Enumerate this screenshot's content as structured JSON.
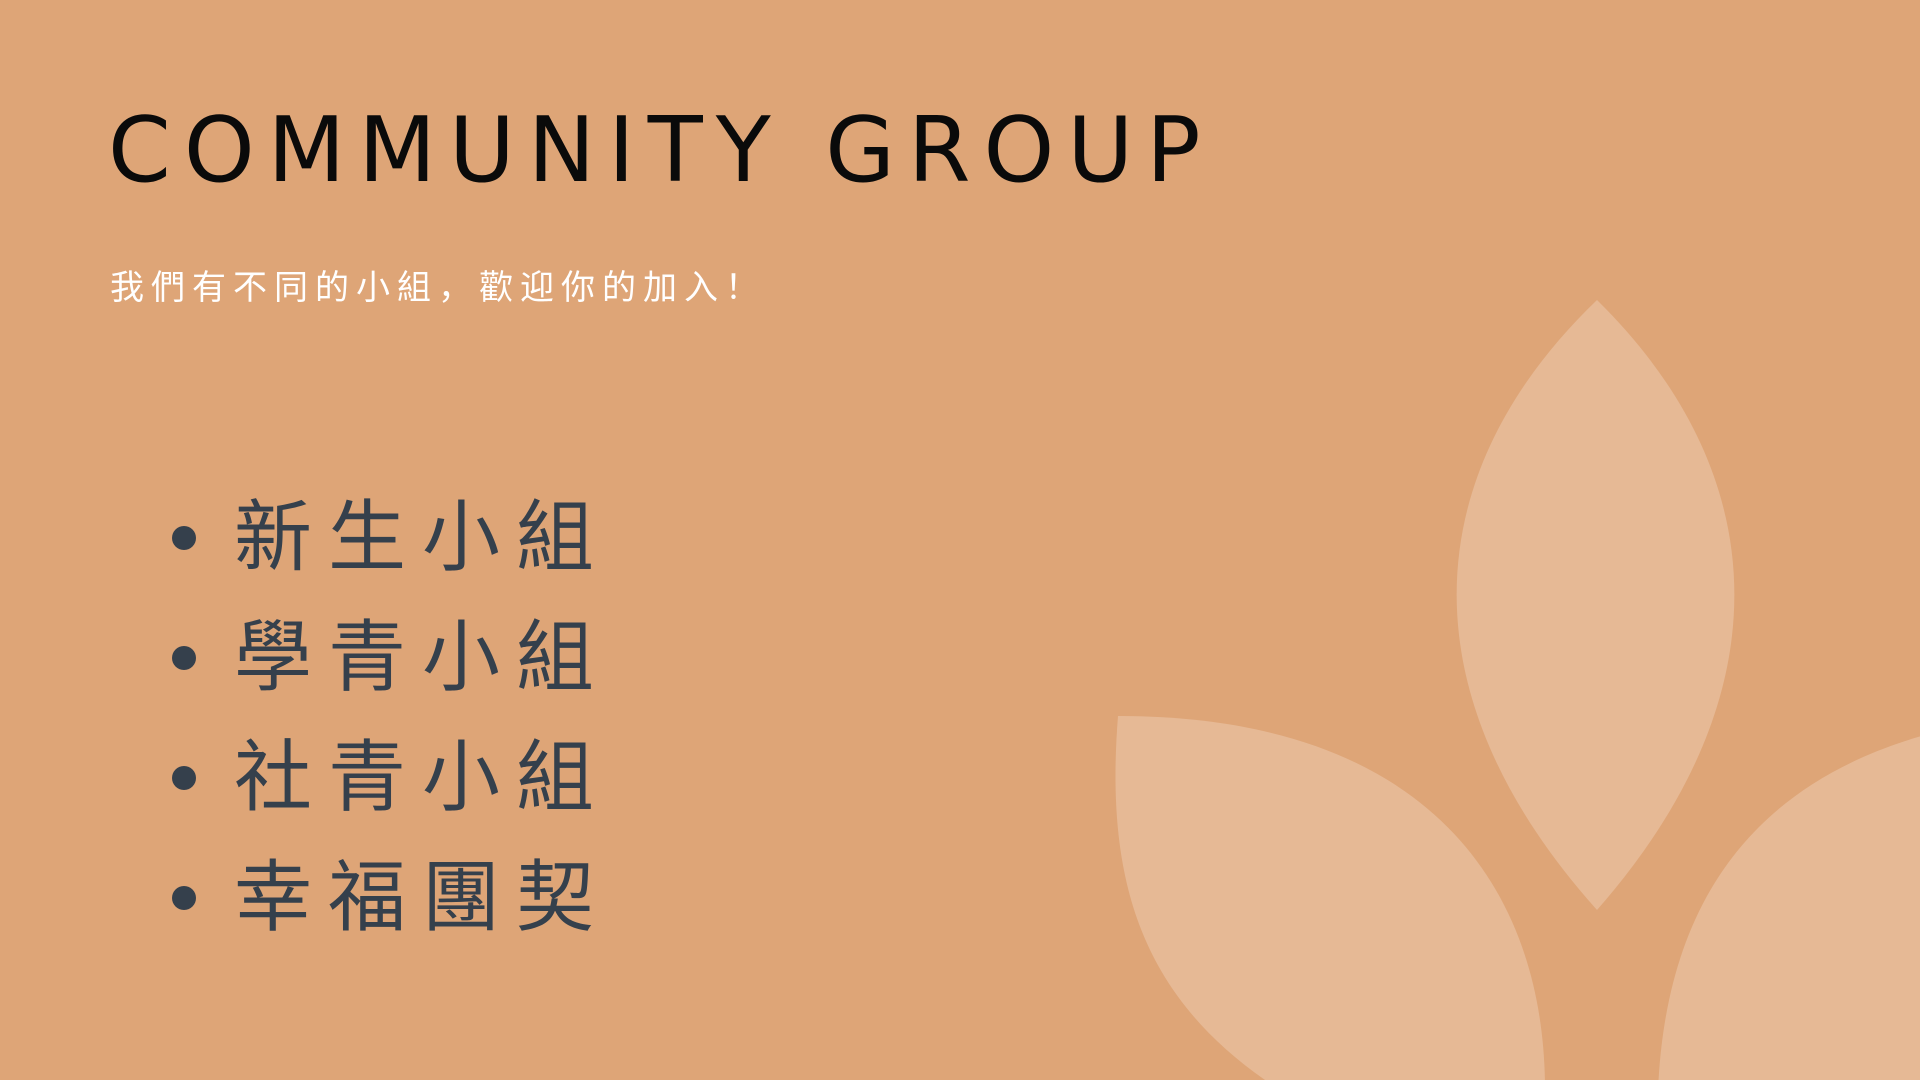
{
  "slide": {
    "title": "COMMUNITY GROUP",
    "subtitle": "我們有不同的小組，歡迎你的加入！",
    "groups": [
      {
        "label": "新生小組"
      },
      {
        "label": "學青小組"
      },
      {
        "label": "社青小組"
      },
      {
        "label": "幸福團契"
      }
    ]
  },
  "colors": {
    "background": "#dea577",
    "leaf": "#e6b995",
    "title": "#0a0a0a",
    "subtitle": "#ffffff",
    "list_text": "#35404c",
    "bullet": "#35404c"
  }
}
